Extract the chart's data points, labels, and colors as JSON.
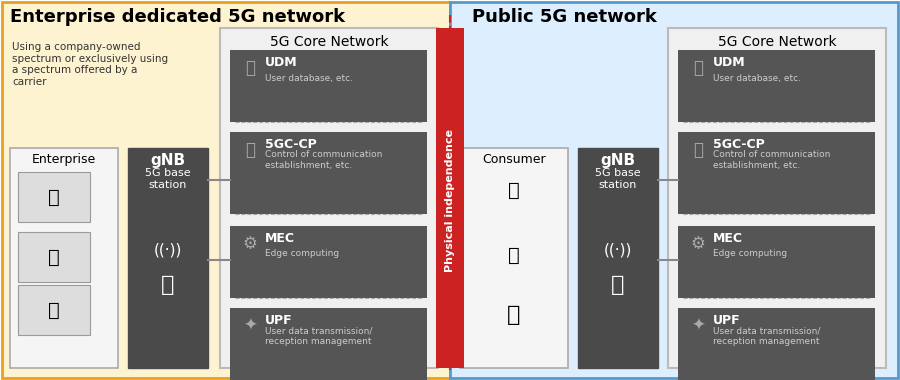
{
  "fig_width": 9.0,
  "fig_height": 3.8,
  "bg_color": "#ffffff",
  "enterprise_bg": "#fef3d0",
  "enterprise_border": "#e8a020",
  "public_bg": "#ddeeff",
  "public_border": "#5599cc",
  "enterprise_title": "Enterprise dedicated 5G network",
  "public_title": "Public 5G network",
  "enterprise_desc": "Using a company-owned\nspectrum or exclusively using\na spectrum offered by a\ncarrier",
  "gnb_color": "#4a4a4a",
  "gnb_label1": "gNB",
  "gnb_label2": "5G base\nstation",
  "core_bg": "#e8e8e8",
  "core_border": "#aaaaaa",
  "core_title": "5G Core Network",
  "dark_box": "#555555",
  "dark_box2": "#666666",
  "udm_label": "UDM",
  "udm_sub": "User database, etc.",
  "cp_label": "5GC-CP",
  "cp_sub": "Control of communication\nestablishment, etc.",
  "mec_label": "MEC",
  "mec_sub": "Edge computing",
  "upf_label": "UPF",
  "upf_sub": "User data transmission/\nreception management",
  "phys_ind_text": "Physical independence",
  "phys_ind_color": "#cc2222",
  "enterprise_box_color": "#f0f0f0",
  "enterprise_box_border": "#888888",
  "consumer_label": "Consumer",
  "enterprise_label": "Enterprise",
  "line_color": "#888888",
  "connector_color": "#888888"
}
